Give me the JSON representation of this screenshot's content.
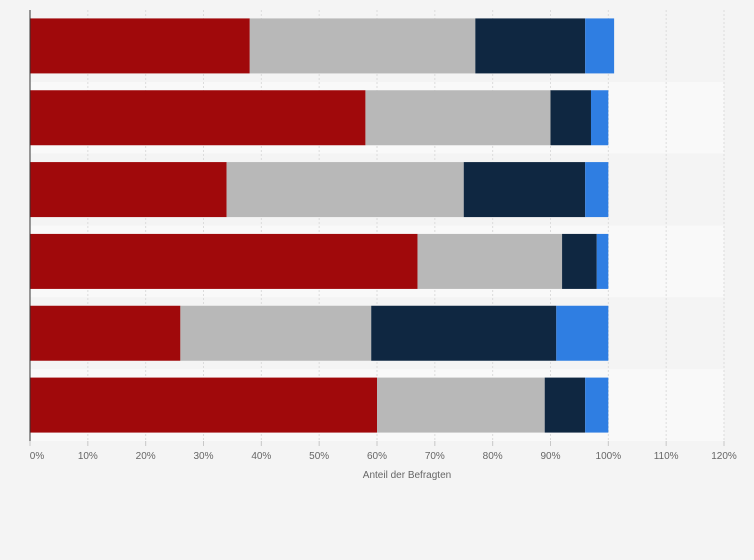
{
  "chart_data": {
    "type": "bar",
    "orientation": "horizontal",
    "stacked": true,
    "title": "",
    "xlabel": "Anteil der Befragten",
    "ylabel": "",
    "xlim": [
      0,
      120
    ],
    "x_ticks": [
      0,
      10,
      20,
      30,
      40,
      50,
      60,
      70,
      80,
      90,
      100,
      110,
      120
    ],
    "tick_suffix": "%",
    "grid": true,
    "legend": "none",
    "row_count": 6,
    "series": [
      {
        "color": "#a0090b",
        "values": [
          38,
          58,
          34,
          67,
          26,
          60
        ]
      },
      {
        "color": "#b8b8b8",
        "values": [
          39,
          32,
          41,
          25,
          33,
          29
        ]
      },
      {
        "color": "#0f2741",
        "values": [
          19,
          7,
          21,
          6,
          32,
          7
        ]
      },
      {
        "color": "#2f7ee2",
        "values": [
          5,
          3,
          4,
          2,
          9,
          4
        ]
      }
    ]
  }
}
